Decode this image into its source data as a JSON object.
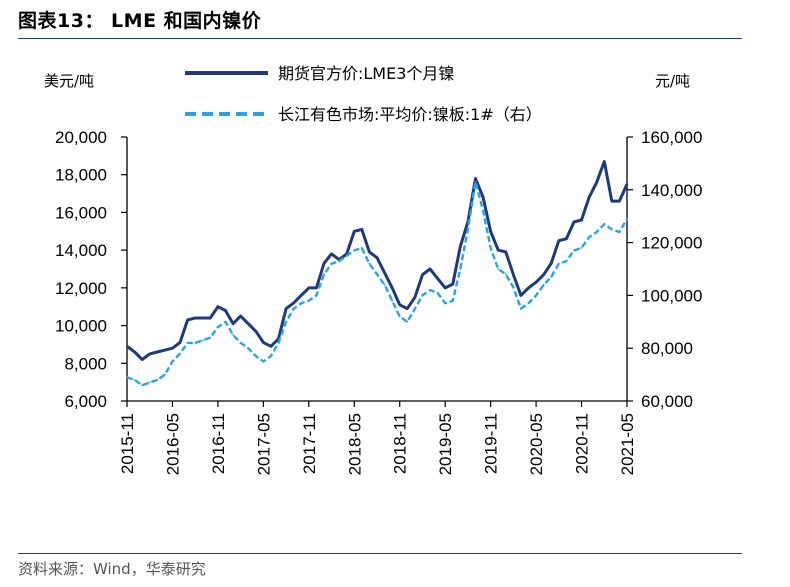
{
  "header": {
    "title": "图表13：  LME 和国内镍价"
  },
  "footer": {
    "source": "资料来源：Wind，华泰研究"
  },
  "chart_data": {
    "type": "line",
    "left_unit": "美元/吨",
    "right_unit": "元/吨",
    "left_axis": {
      "min": 6000,
      "max": 20000,
      "ticks": [
        6000,
        8000,
        10000,
        12000,
        14000,
        16000,
        18000,
        20000
      ],
      "tick_labels": [
        "6,000",
        "8,000",
        "10,000",
        "12,000",
        "14,000",
        "16,000",
        "18,000",
        "20,000"
      ]
    },
    "right_axis": {
      "min": 60000,
      "max": 160000,
      "ticks": [
        60000,
        80000,
        100000,
        120000,
        140000,
        160000
      ],
      "tick_labels": [
        "60,000",
        "80,000",
        "100,000",
        "120,000",
        "140,000",
        "160,000"
      ]
    },
    "x_tick_labels": [
      "2015-11",
      "2016-05",
      "2016-11",
      "2017-05",
      "2017-11",
      "2018-05",
      "2018-11",
      "2019-05",
      "2019-11",
      "2020-05",
      "2020-11",
      "2021-05"
    ],
    "x_label_index": [
      0,
      6,
      12,
      18,
      24,
      30,
      36,
      42,
      48,
      54,
      60,
      66
    ],
    "x": [
      "2015-11",
      "2015-12",
      "2016-01",
      "2016-02",
      "2016-03",
      "2016-04",
      "2016-05",
      "2016-06",
      "2016-07",
      "2016-08",
      "2016-09",
      "2016-10",
      "2016-11",
      "2016-12",
      "2017-01",
      "2017-02",
      "2017-03",
      "2017-04",
      "2017-05",
      "2017-06",
      "2017-07",
      "2017-08",
      "2017-09",
      "2017-10",
      "2017-11",
      "2017-12",
      "2018-01",
      "2018-02",
      "2018-03",
      "2018-04",
      "2018-05",
      "2018-06",
      "2018-07",
      "2018-08",
      "2018-09",
      "2018-10",
      "2018-11",
      "2018-12",
      "2019-01",
      "2019-02",
      "2019-03",
      "2019-04",
      "2019-05",
      "2019-06",
      "2019-07",
      "2019-08",
      "2019-09",
      "2019-10",
      "2019-11",
      "2019-12",
      "2020-01",
      "2020-02",
      "2020-03",
      "2020-04",
      "2020-05",
      "2020-06",
      "2020-07",
      "2020-08",
      "2020-09",
      "2020-10",
      "2020-11",
      "2020-12",
      "2021-01",
      "2021-02",
      "2021-03",
      "2021-04",
      "2021-05"
    ],
    "series": [
      {
        "name": "期货官方价:LME3个月镍",
        "axis": "left",
        "color": "#1f3a7a",
        "style": "solid",
        "values": [
          8900,
          8600,
          8200,
          8500,
          8600,
          8700,
          8800,
          9100,
          10300,
          10400,
          10400,
          10400,
          11000,
          10800,
          10100,
          10500,
          10100,
          9700,
          9100,
          8900,
          9300,
          10900,
          11200,
          11600,
          12000,
          12000,
          13300,
          13800,
          13500,
          13800,
          15000,
          15100,
          13900,
          13600,
          12800,
          12000,
          11100,
          10900,
          11500,
          12700,
          13000,
          12500,
          12000,
          12200,
          14200,
          15500,
          17800,
          16800,
          15000,
          14000,
          13900,
          12700,
          11600,
          12000,
          12300,
          12700,
          13300,
          14500,
          14600,
          15500,
          15600,
          16800,
          17600,
          18700,
          16600,
          16600,
          17500
        ]
      },
      {
        "name": "长江有色市场:平均价:镍板:1#（右）",
        "axis": "right",
        "color": "#2aa4e0",
        "style": "dashed",
        "values": [
          69000,
          68000,
          66000,
          67000,
          68000,
          70000,
          75000,
          78000,
          82000,
          82000,
          83000,
          84000,
          88000,
          90000,
          85000,
          82000,
          80000,
          77000,
          75000,
          77000,
          82000,
          90000,
          95000,
          97000,
          98000,
          100000,
          108000,
          112000,
          113000,
          115000,
          117000,
          118000,
          112000,
          108000,
          104000,
          98000,
          92000,
          90000,
          95000,
          100000,
          102000,
          101000,
          97000,
          98000,
          110000,
          125000,
          143000,
          132000,
          118000,
          110000,
          108000,
          103000,
          95000,
          97000,
          100000,
          104000,
          107000,
          112000,
          113000,
          117000,
          118000,
          122000,
          124000,
          127000,
          125000,
          124000,
          129000
        ]
      }
    ]
  }
}
